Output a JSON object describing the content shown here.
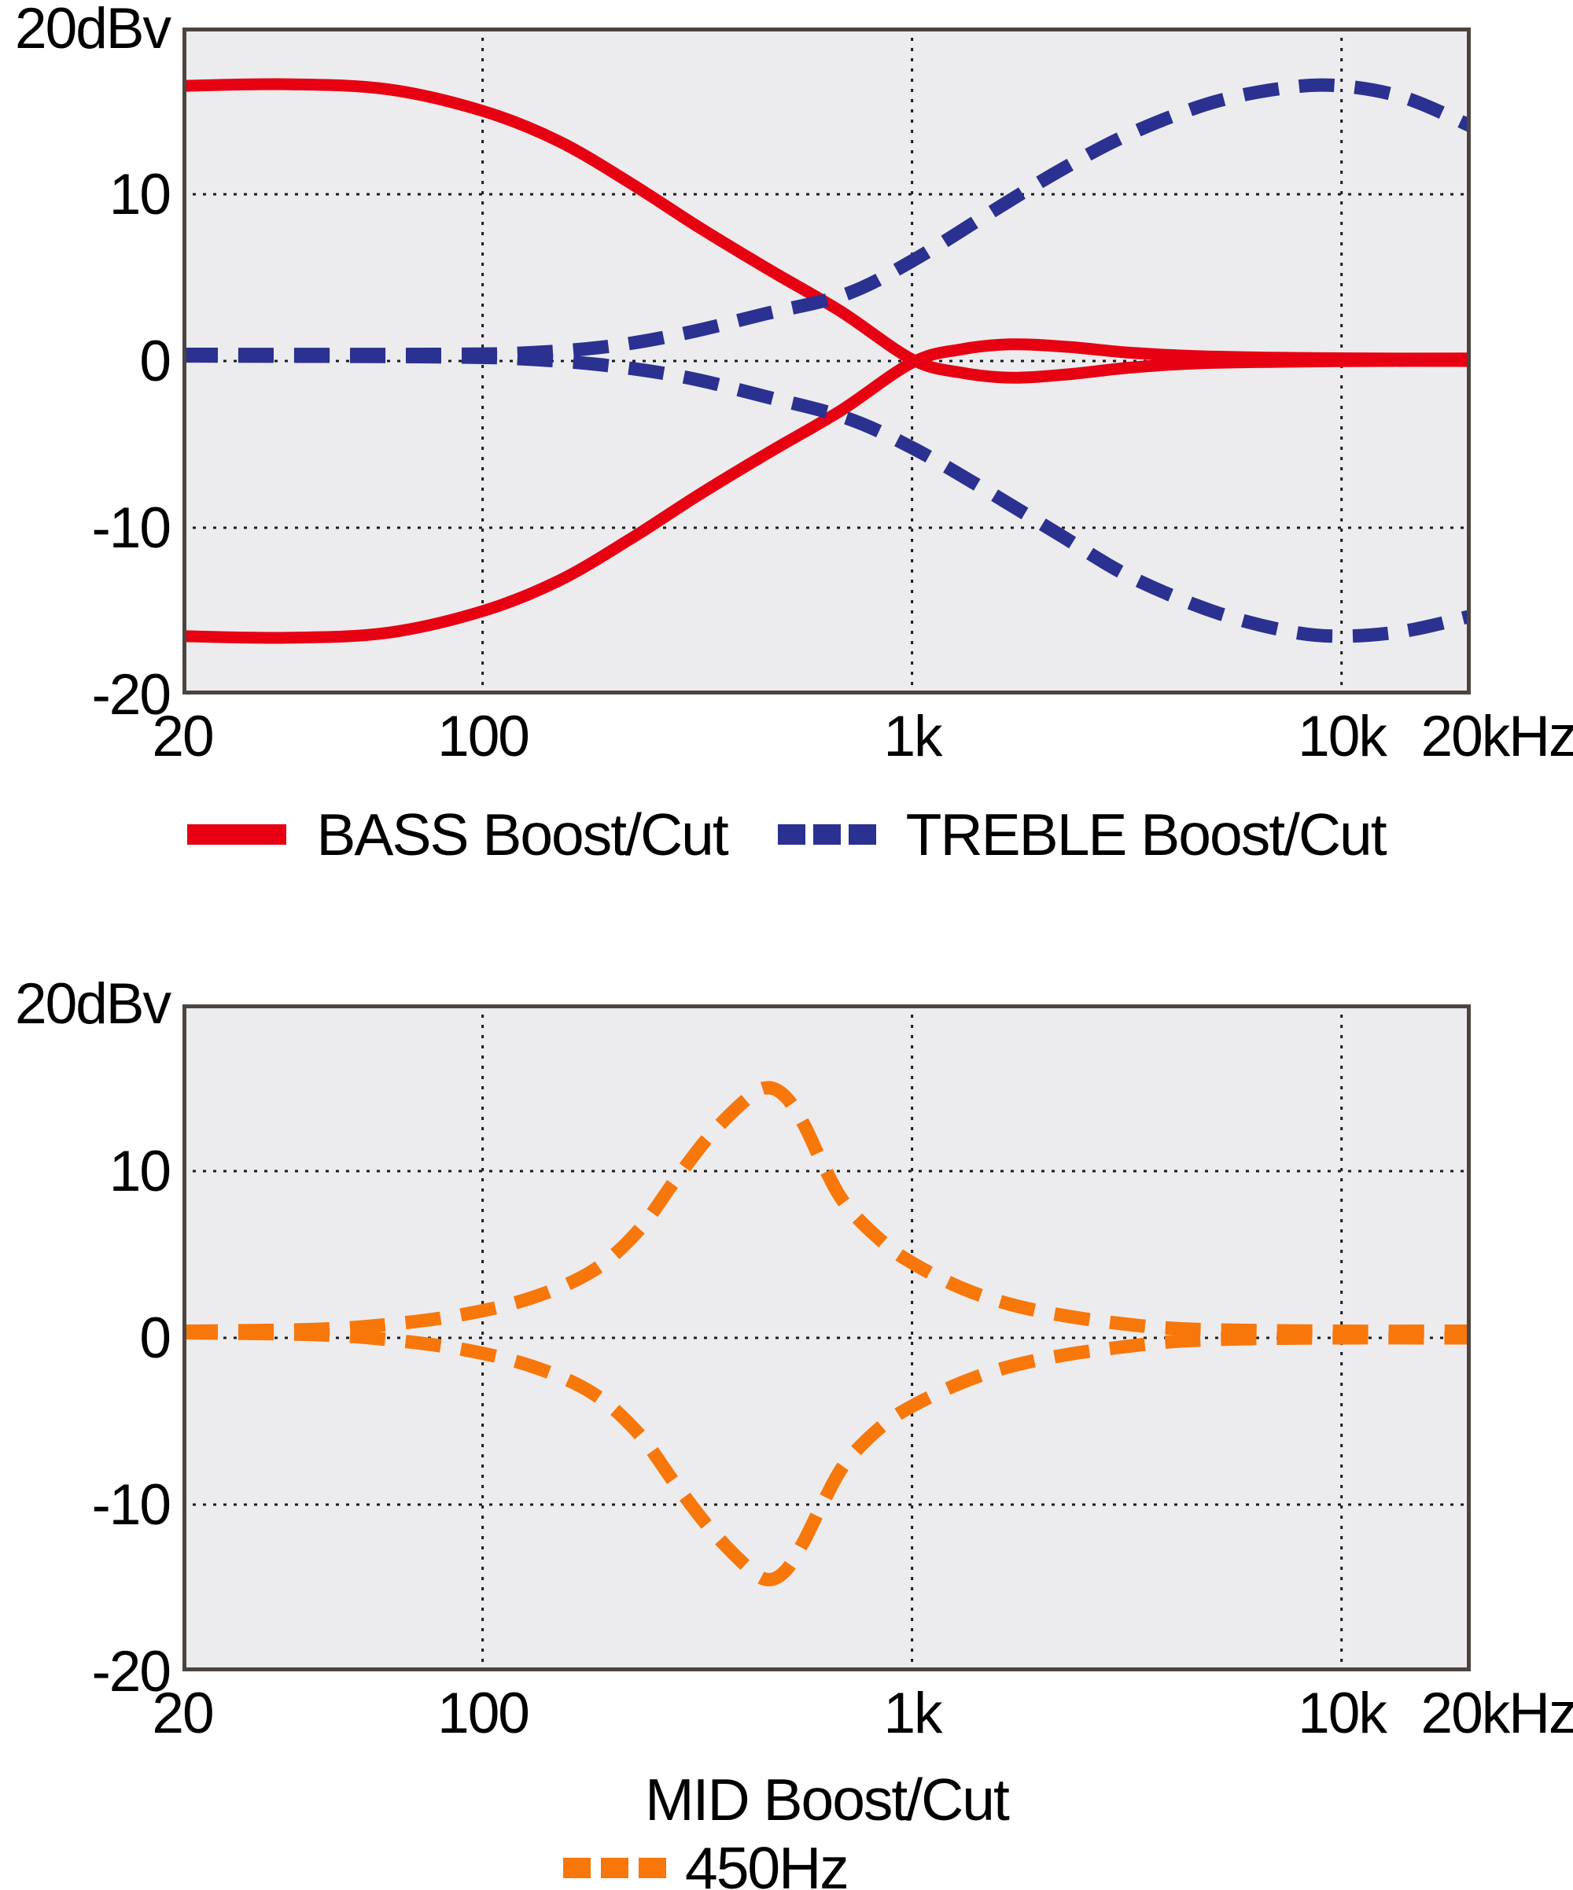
{
  "chart_data": [
    {
      "type": "line",
      "name": "bass-treble-response",
      "x_axis": {
        "scale": "log",
        "unit": "Hz",
        "range": [
          20,
          20000
        ],
        "tick_values": [
          20,
          100,
          1000,
          10000,
          20000
        ],
        "tick_labels": [
          "20",
          "100",
          "1k",
          "10k",
          "20kHz"
        ]
      },
      "y_axis": {
        "unit": "dBv",
        "range": [
          -20,
          20
        ],
        "tick_values": [
          20,
          10,
          0,
          -10,
          -20
        ],
        "tick_labels": [
          "20dBv",
          "10",
          "0",
          "-10",
          "-20"
        ]
      },
      "grid": true,
      "legend_position": "bottom",
      "legend": [
        {
          "label": "BASS Boost/Cut",
          "color": "#e60012",
          "line_style": "solid"
        },
        {
          "label": "TREBLE Boost/Cut",
          "color": "#2b3190",
          "line_style": "dashed"
        }
      ],
      "series": [
        {
          "name": "BASS boost",
          "color": "#e60012",
          "line_style": "solid",
          "points": [
            [
              20,
              16.5
            ],
            [
              35,
              16.6
            ],
            [
              60,
              16.3
            ],
            [
              100,
              15.0
            ],
            [
              150,
              13.2
            ],
            [
              220,
              10.7
            ],
            [
              320,
              8.0
            ],
            [
              470,
              5.4
            ],
            [
              680,
              3.0
            ],
            [
              1000,
              0.1
            ],
            [
              1300,
              -0.7
            ],
            [
              1700,
              -1.0
            ],
            [
              2300,
              -0.8
            ],
            [
              3200,
              -0.4
            ],
            [
              4500,
              -0.15
            ],
            [
              7000,
              -0.05
            ],
            [
              12000,
              0
            ],
            [
              20000,
              0
            ]
          ]
        },
        {
          "name": "BASS cut",
          "color": "#e60012",
          "line_style": "solid",
          "points": [
            [
              20,
              -16.5
            ],
            [
              35,
              -16.6
            ],
            [
              60,
              -16.3
            ],
            [
              100,
              -15.0
            ],
            [
              150,
              -13.2
            ],
            [
              220,
              -10.7
            ],
            [
              320,
              -8.0
            ],
            [
              470,
              -5.4
            ],
            [
              680,
              -3.0
            ],
            [
              1000,
              -0.1
            ],
            [
              1300,
              0.7
            ],
            [
              1700,
              1.0
            ],
            [
              2300,
              0.85
            ],
            [
              3200,
              0.5
            ],
            [
              4500,
              0.3
            ],
            [
              7000,
              0.2
            ],
            [
              12000,
              0.15
            ],
            [
              20000,
              0.15
            ]
          ]
        },
        {
          "name": "TREBLE boost",
          "color": "#2b3190",
          "line_style": "dashed",
          "points": [
            [
              20,
              0.4
            ],
            [
              80,
              0.4
            ],
            [
              130,
              0.5
            ],
            [
              200,
              0.9
            ],
            [
              300,
              1.7
            ],
            [
              450,
              2.8
            ],
            [
              700,
              4.0
            ],
            [
              1000,
              6.0
            ],
            [
              1500,
              8.8
            ],
            [
              2200,
              11.4
            ],
            [
              3200,
              13.6
            ],
            [
              5000,
              15.5
            ],
            [
              7500,
              16.4
            ],
            [
              10000,
              16.5
            ],
            [
              14000,
              15.8
            ],
            [
              20000,
              14.1
            ]
          ]
        },
        {
          "name": "TREBLE cut",
          "color": "#2b3190",
          "line_style": "dashed",
          "points": [
            [
              20,
              0.3
            ],
            [
              80,
              0.25
            ],
            [
              130,
              0.1
            ],
            [
              200,
              -0.3
            ],
            [
              300,
              -1.0
            ],
            [
              450,
              -2.1
            ],
            [
              700,
              -3.4
            ],
            [
              1000,
              -5.2
            ],
            [
              1500,
              -7.8
            ],
            [
              2200,
              -10.4
            ],
            [
              3200,
              -12.9
            ],
            [
              5000,
              -15.0
            ],
            [
              7500,
              -16.2
            ],
            [
              10000,
              -16.5
            ],
            [
              14000,
              -16.2
            ],
            [
              20000,
              -15.3
            ]
          ]
        }
      ]
    },
    {
      "type": "line",
      "name": "mid-response",
      "xlabel": "MID Boost/Cut",
      "x_axis": {
        "scale": "log",
        "unit": "Hz",
        "range": [
          20,
          20000
        ],
        "tick_values": [
          20,
          100,
          1000,
          10000,
          20000
        ],
        "tick_labels": [
          "20",
          "100",
          "1k",
          "10k",
          "20kHz"
        ]
      },
      "y_axis": {
        "unit": "dBv",
        "range": [
          -20,
          20
        ],
        "tick_values": [
          20,
          10,
          0,
          -10,
          -20
        ],
        "tick_labels": [
          "20dBv",
          "10",
          "0",
          "-10",
          "-20"
        ]
      },
      "grid": true,
      "legend_position": "bottom",
      "legend": [
        {
          "label": "450Hz",
          "color": "#f8770b",
          "line_style": "dashed"
        }
      ],
      "series": [
        {
          "name": "MID boost 450Hz",
          "color": "#f8770b",
          "line_style": "dashed",
          "points": [
            [
              20,
              0.4
            ],
            [
              40,
              0.5
            ],
            [
              60,
              0.8
            ],
            [
              90,
              1.4
            ],
            [
              130,
              2.4
            ],
            [
              180,
              4.0
            ],
            [
              230,
              6.4
            ],
            [
              280,
              9.4
            ],
            [
              340,
              12.2
            ],
            [
              420,
              14.5
            ],
            [
              465,
              15.0
            ],
            [
              510,
              14.4
            ],
            [
              560,
              12.8
            ],
            [
              620,
              10.4
            ],
            [
              700,
              8.0
            ],
            [
              850,
              5.8
            ],
            [
              1000,
              4.5
            ],
            [
              1300,
              3.0
            ],
            [
              1700,
              2.0
            ],
            [
              2300,
              1.3
            ],
            [
              3200,
              0.8
            ],
            [
              4200,
              0.55
            ],
            [
              6000,
              0.45
            ],
            [
              10000,
              0.4
            ],
            [
              20000,
              0.4
            ]
          ]
        },
        {
          "name": "MID cut 450Hz",
          "color": "#f8770b",
          "line_style": "dashed",
          "points": [
            [
              20,
              0.3
            ],
            [
              40,
              0.2
            ],
            [
              60,
              -0.1
            ],
            [
              90,
              -0.7
            ],
            [
              130,
              -1.7
            ],
            [
              180,
              -3.3
            ],
            [
              230,
              -5.7
            ],
            [
              280,
              -8.7
            ],
            [
              340,
              -11.5
            ],
            [
              420,
              -13.9
            ],
            [
              465,
              -14.5
            ],
            [
              510,
              -13.9
            ],
            [
              560,
              -12.2
            ],
            [
              620,
              -9.9
            ],
            [
              700,
              -7.5
            ],
            [
              850,
              -5.3
            ],
            [
              1000,
              -4.1
            ],
            [
              1300,
              -2.7
            ],
            [
              1700,
              -1.7
            ],
            [
              2300,
              -1.0
            ],
            [
              3200,
              -0.5
            ],
            [
              4200,
              -0.2
            ],
            [
              6000,
              -0.05
            ],
            [
              10000,
              0
            ],
            [
              20000,
              0
            ]
          ]
        }
      ]
    }
  ],
  "colors": {
    "bass": "#e60012",
    "treble": "#2b3190",
    "mid": "#f8770b",
    "plot_background": "#ececee",
    "grid": "#1c1c1c",
    "frame": "#4b443f"
  }
}
